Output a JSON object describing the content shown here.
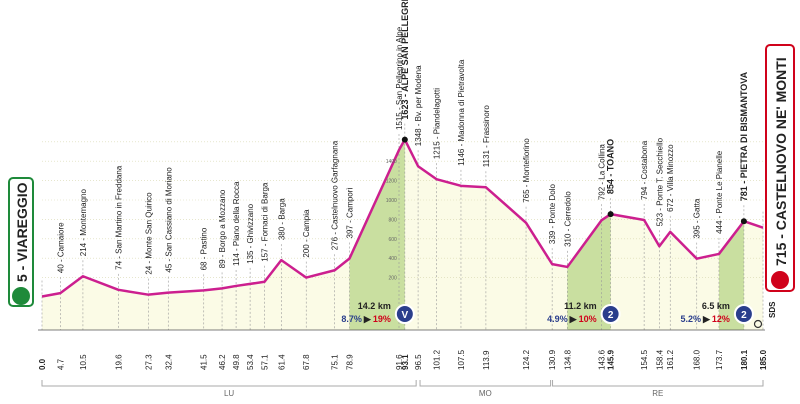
{
  "chart_data": {
    "type": "area",
    "color": "#cc1f8f",
    "fill": "#fbfbe6",
    "climb_color": "#c9dfa0",
    "xlim": [
      0,
      185
    ],
    "ylim": [
      0,
      2000
    ],
    "x": [
      0,
      4.7,
      10.5,
      19.6,
      27.3,
      32.4,
      41.5,
      46.2,
      49.8,
      53.4,
      57.1,
      61.4,
      67.8,
      75.1,
      78.9,
      91.6,
      93.1,
      96.5,
      101.2,
      107.5,
      113.9,
      124.2,
      130.9,
      134.8,
      143.6,
      145.9,
      154.5,
      158.4,
      161.2,
      168.0,
      173.7,
      180.1,
      185.0
    ],
    "values": [
      5,
      40,
      214,
      74,
      24,
      45,
      68,
      89,
      114,
      135,
      157,
      380,
      200,
      276,
      397,
      1515,
      1623,
      1348,
      1215,
      1146,
      1131,
      765,
      339,
      310,
      792,
      854,
      794,
      523,
      672,
      395,
      444,
      781,
      715
    ],
    "xticks": [
      {
        "value": 0,
        "label": "0.0"
      },
      4.7,
      10.5,
      19.6,
      27.3,
      32.4,
      41.5,
      46.2,
      49.8,
      53.4,
      57.1,
      61.4,
      67.8,
      75.1,
      78.9,
      91.6,
      93.1,
      96.5,
      101.2,
      107.5,
      113.9,
      124.2,
      130.9,
      134.8,
      143.6,
      145.9,
      154.5,
      158.4,
      161.2,
      {
        "value": 168,
        "label": "168.0"
      },
      173.7,
      180.1,
      {
        "value": 185,
        "label": "185.0"
      }
    ],
    "yticks": [
      200,
      400,
      600,
      800,
      1000,
      1200,
      1400,
      1600
    ],
    "waypoints": [
      "5 - VIAREGGIO",
      "40 - Camaiore",
      "214 - Montemagno",
      "74 - San Martino in Freddana",
      "24 - Monte San Quirico",
      "45 - San Cassiano di Moriano",
      "68 - Pastino",
      "89 - Borgo a Mozzano",
      "114 - Piano della Rocca",
      "135 - Ghivizzano",
      "157 - Fornaci di Barga",
      "380 - Barga",
      "200 - Campia",
      "276 - Castelnuovo Garfagnana",
      "397 - Camporì",
      "1515 - San Pellegrino in Alpe",
      "1623 - ALPE SAN PELLEGRINO",
      "1348 - Bv. per Modena",
      "1215 - Piandelagotti",
      "1146 - Madonna di Pietravolta",
      "1131 - Frassinoro",
      "765 - Montefiorino",
      "339 - Ponte Dolo",
      "310 - Cerredolo",
      "792 - La Collina",
      "854 - TOANO",
      "794 - Costabona",
      "523 - Ponte T. Secchiello",
      "672 - Villa Minozzo",
      "395 - Gatta",
      "444 - Ponte Le Pianelle",
      "781 - PIETRA DI BISMANTOVA",
      "715 - CASTELNOVO NE' MONTI"
    ],
    "climbs": [
      {
        "from": 78.9,
        "to": 93.1,
        "length": "14.2 km",
        "avg": "8.7%",
        "max": "19%",
        "category": "V"
      },
      {
        "from": 134.8,
        "to": 145.9,
        "length": "11.2 km",
        "avg": "4.9%",
        "max": "10%",
        "category": "2"
      },
      {
        "from": 173.7,
        "to": 180.1,
        "length": "6.5 km",
        "avg": "5.2%",
        "max": "12%",
        "category": "2"
      }
    ],
    "sectors": [
      {
        "label": "LU",
        "from": 0,
        "to": 96
      },
      {
        "label": "MO",
        "from": 97,
        "to": 130.5
      },
      {
        "label": "RE",
        "from": 131,
        "to": 185
      }
    ],
    "sponsor": "SDS"
  }
}
